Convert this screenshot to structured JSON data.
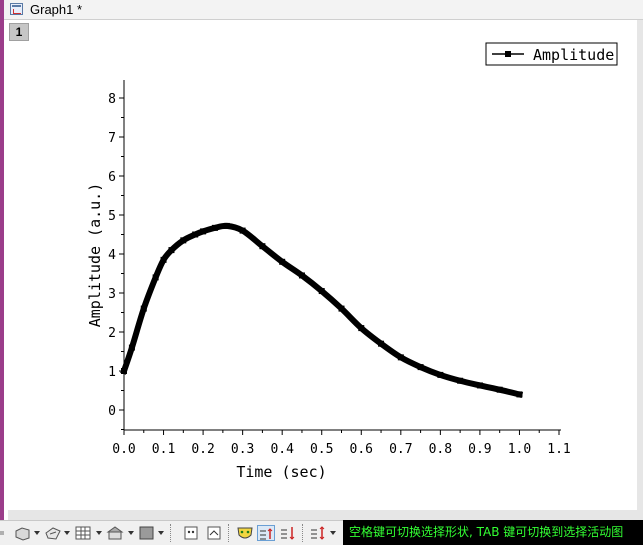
{
  "window": {
    "title": "Graph1 *",
    "layer_label": "1"
  },
  "chart_data": {
    "type": "line",
    "title": "",
    "xlabel": "Time (sec)",
    "ylabel": "Amplitude (a.u.)",
    "xlim": [
      0.0,
      1.1
    ],
    "ylim": [
      -0.5,
      8.5
    ],
    "x_ticks": [
      "0.0",
      "0.1",
      "0.2",
      "0.3",
      "0.4",
      "0.5",
      "0.6",
      "0.7",
      "0.8",
      "0.9",
      "1.0",
      "1.1"
    ],
    "y_ticks": [
      "0",
      "1",
      "2",
      "3",
      "4",
      "5",
      "6",
      "7",
      "8"
    ],
    "grid": false,
    "legend_position": "top-right",
    "series": [
      {
        "name": "Amplitude",
        "color": "#000000",
        "x": [
          0.0,
          0.02,
          0.05,
          0.08,
          0.1,
          0.12,
          0.15,
          0.18,
          0.2,
          0.23,
          0.26,
          0.3,
          0.35,
          0.4,
          0.45,
          0.5,
          0.55,
          0.6,
          0.65,
          0.7,
          0.75,
          0.8,
          0.85,
          0.9,
          0.95,
          1.0
        ],
        "y": [
          1.0,
          1.6,
          2.6,
          3.4,
          3.85,
          4.1,
          4.35,
          4.5,
          4.58,
          4.67,
          4.72,
          4.6,
          4.2,
          3.8,
          3.45,
          3.05,
          2.6,
          2.1,
          1.7,
          1.35,
          1.1,
          0.9,
          0.75,
          0.63,
          0.52,
          0.4
        ]
      }
    ]
  },
  "toolbar": {
    "status_text": "空格键可切换选择形状, TAB 键可切换到选择活动图"
  },
  "icons": [
    "window-graph-icon",
    "shape-tool-icon",
    "draw-tool-icon",
    "grid-icon",
    "building-icon",
    "fill-icon",
    "mask-icon",
    "face-icon",
    "data-select-icon",
    "data-reader-icon"
  ]
}
